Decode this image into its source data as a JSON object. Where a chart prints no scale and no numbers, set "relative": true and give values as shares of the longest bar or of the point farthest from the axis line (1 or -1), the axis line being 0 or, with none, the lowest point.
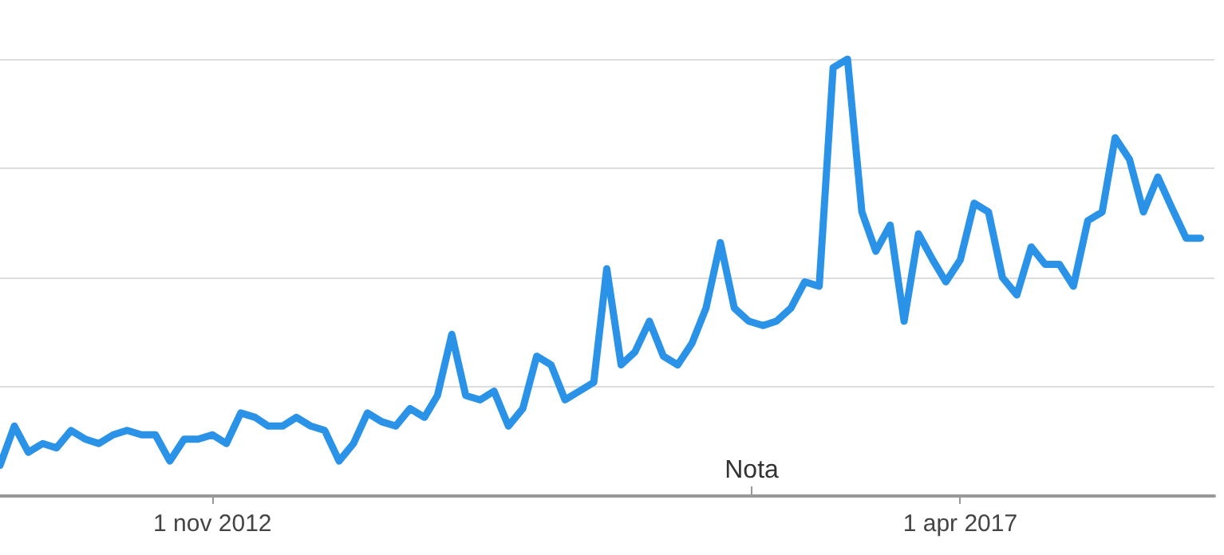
{
  "chart_data": {
    "type": "line",
    "relative": true,
    "grid": "y",
    "marker": "none",
    "line_style": "solid",
    "x": [
      "2011-08",
      "2011-09",
      "2011-10",
      "2011-11",
      "2011-12",
      "2012-01",
      "2012-02",
      "2012-03",
      "2012-04",
      "2012-05",
      "2012-06",
      "2012-07",
      "2012-08",
      "2012-09",
      "2012-10",
      "2012-11",
      "2012-12",
      "2013-01",
      "2013-02",
      "2013-03",
      "2013-04",
      "2013-05",
      "2013-06",
      "2013-07",
      "2013-08",
      "2013-09",
      "2013-10",
      "2013-11",
      "2013-12",
      "2014-01",
      "2014-02",
      "2014-03",
      "2014-04",
      "2014-05",
      "2014-06",
      "2014-07",
      "2014-08",
      "2014-09",
      "2014-10",
      "2014-11",
      "2014-12",
      "2015-01",
      "2015-02",
      "2015-03",
      "2015-04",
      "2015-05",
      "2015-06",
      "2015-07",
      "2015-08",
      "2015-09",
      "2015-10",
      "2015-11",
      "2015-12",
      "2016-01",
      "2016-02",
      "2016-03",
      "2016-04",
      "2016-05",
      "2016-06",
      "2016-07",
      "2016-08",
      "2016-09",
      "2016-10",
      "2016-11",
      "2016-12",
      "2017-01",
      "2017-02",
      "2017-03",
      "2017-04",
      "2017-05",
      "2017-06",
      "2017-07",
      "2017-08",
      "2017-09",
      "2017-10",
      "2017-11",
      "2017-12",
      "2018-01",
      "2018-02",
      "2018-03",
      "2018-04",
      "2018-05",
      "2018-06",
      "2018-07",
      "2018-08",
      "2018-09"
    ],
    "series": [
      {
        "color": "#2a93e8",
        "values": [
          0.07,
          0.16,
          0.1,
          0.12,
          0.11,
          0.15,
          0.13,
          0.12,
          0.14,
          0.15,
          0.14,
          0.14,
          0.08,
          0.13,
          0.13,
          0.14,
          0.12,
          0.19,
          0.18,
          0.16,
          0.16,
          0.18,
          0.16,
          0.15,
          0.08,
          0.12,
          0.19,
          0.17,
          0.16,
          0.2,
          0.18,
          0.23,
          0.37,
          0.23,
          0.22,
          0.24,
          0.16,
          0.2,
          0.32,
          0.3,
          0.22,
          0.24,
          0.26,
          0.52,
          0.3,
          0.33,
          0.4,
          0.32,
          0.3,
          0.35,
          0.43,
          0.58,
          0.43,
          0.4,
          0.39,
          0.4,
          0.43,
          0.49,
          0.48,
          0.98,
          1,
          0.65,
          0.56,
          0.62,
          0.4,
          0.6,
          0.54,
          0.49,
          0.54,
          0.67,
          0.65,
          0.5,
          0.46,
          0.57,
          0.53,
          0.53,
          0.48,
          0.63,
          0.65,
          0.82,
          0.77,
          0.65,
          0.73,
          0.66,
          0.59,
          0.59
        ]
      }
    ],
    "xlim": [
      "2011-08",
      "2018-10"
    ],
    "xticks": [
      {
        "value": "2012-11",
        "label": "1 nov 2012"
      },
      {
        "value": "2017-04",
        "label": "1 apr 2017"
      }
    ],
    "annotations": [
      "Nota"
    ]
  }
}
